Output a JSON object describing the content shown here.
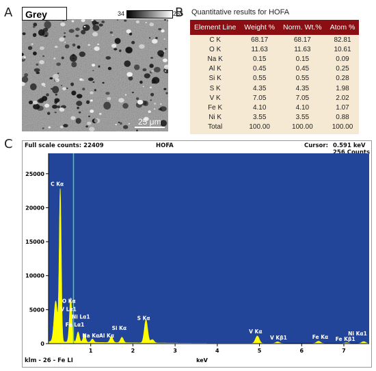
{
  "panel_letters": {
    "a": "A",
    "b": "B",
    "c": "C"
  },
  "panelA": {
    "label": "Grey",
    "greyscale_min": "34",
    "greyscale_max": "255",
    "scale_bar": "25 μm"
  },
  "panelB": {
    "title": "Quantitative results for HOFA",
    "headers": [
      "Element Line",
      "Weight %",
      "Norm. Wt.%",
      "Atom %"
    ],
    "rows": [
      [
        "C K",
        "68.17",
        "68.17",
        "82.81"
      ],
      [
        "O K",
        "11.63",
        "11.63",
        "10.61"
      ],
      [
        "Na K",
        "0.15",
        "0.15",
        "0.09"
      ],
      [
        "Al K",
        "0.45",
        "0.45",
        "0.25"
      ],
      [
        "Si K",
        "0.55",
        "0.55",
        "0.28"
      ],
      [
        "S K",
        "4.35",
        "4.35",
        "1.98"
      ],
      [
        "V K",
        "7.05",
        "7.05",
        "2.02"
      ],
      [
        "Fe K",
        "4.10",
        "4.10",
        "1.07"
      ],
      [
        "Ni K",
        "3.55",
        "3.55",
        "0.88"
      ],
      [
        "Total",
        "100.00",
        "100.00",
        "100.00"
      ]
    ]
  },
  "panelC": {
    "full_scale": "Full scale counts: 22409",
    "sample": "HOFA",
    "cursor_label": "Cursor:",
    "cursor_value": "0.591 keV",
    "cursor_counts": "256  Counts",
    "footer_left": "klm - 26 - Fe LI",
    "colors": {
      "background": "#22459a",
      "spectrum": "#ffff00",
      "cursor": "#4fcf8f",
      "label": "#ffffff"
    }
  },
  "chart_data": {
    "type": "area",
    "title": "",
    "xlabel": "keV",
    "ylabel": "",
    "xlim": [
      0,
      7.6
    ],
    "ylim": [
      0,
      28000
    ],
    "xticks": [
      1,
      2,
      3,
      4,
      5,
      6,
      7
    ],
    "yticks": [
      0,
      5000,
      10000,
      15000,
      20000,
      25000
    ],
    "cursor_x": 0.591,
    "peaks": [
      {
        "x": 0.17,
        "height": 6000,
        "width": 0.04
      },
      {
        "x": 0.277,
        "height": 22409,
        "width": 0.025
      },
      {
        "x": 0.525,
        "height": 6500,
        "width": 0.03
      },
      {
        "x": 0.7,
        "height": 1500,
        "width": 0.03
      },
      {
        "x": 0.85,
        "height": 1200,
        "width": 0.03
      },
      {
        "x": 1.04,
        "height": 500,
        "width": 0.03
      },
      {
        "x": 1.49,
        "height": 900,
        "width": 0.035
      },
      {
        "x": 1.74,
        "height": 800,
        "width": 0.035
      },
      {
        "x": 2.31,
        "height": 3400,
        "width": 0.04
      },
      {
        "x": 2.46,
        "height": 500,
        "width": 0.04
      },
      {
        "x": 4.95,
        "height": 1100,
        "width": 0.045
      },
      {
        "x": 5.43,
        "height": 250,
        "width": 0.045
      },
      {
        "x": 6.4,
        "height": 350,
        "width": 0.05
      },
      {
        "x": 7.06,
        "height": 120,
        "width": 0.05
      },
      {
        "x": 7.47,
        "height": 300,
        "width": 0.05
      }
    ],
    "background": 300,
    "annotations": [
      {
        "text": "C Kα",
        "x": 0.05,
        "y": 23200
      },
      {
        "text": "O Kα",
        "x": 0.32,
        "y": 6000
      },
      {
        "text": "V Lα1",
        "x": 0.28,
        "y": 4800
      },
      {
        "text": "Ni Lα1",
        "x": 0.55,
        "y": 3700
      },
      {
        "text": "Fe Lα1",
        "x": 0.4,
        "y": 2500
      },
      {
        "text": "Na Kα",
        "x": 0.8,
        "y": 900
      },
      {
        "text": "Al Kα",
        "x": 1.2,
        "y": 900
      },
      {
        "text": "Si Kα",
        "x": 1.5,
        "y": 2000
      },
      {
        "text": "S Kα",
        "x": 2.1,
        "y": 3500
      },
      {
        "text": "V Kα",
        "x": 4.75,
        "y": 1500
      },
      {
        "text": "V Kβ1",
        "x": 5.25,
        "y": 600
      },
      {
        "text": "Fe Kα",
        "x": 6.25,
        "y": 700
      },
      {
        "text": "Fe Kβ1",
        "x": 6.8,
        "y": 400
      },
      {
        "text": "Ni Kα1",
        "x": 7.1,
        "y": 1200
      }
    ]
  }
}
